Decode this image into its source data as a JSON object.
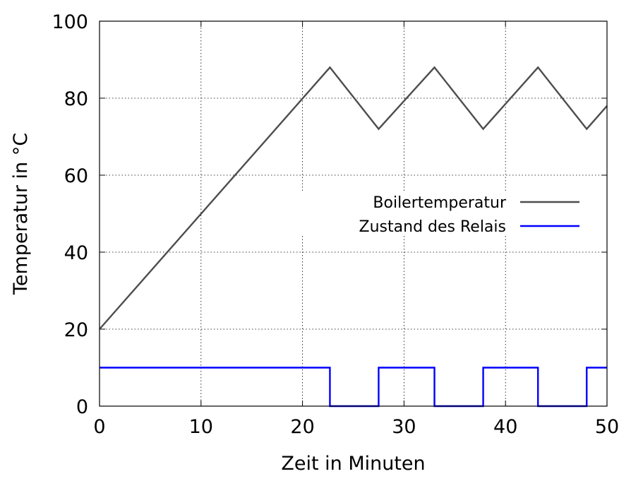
{
  "chart_data": {
    "type": "line",
    "xlabel": "Zeit in Minuten",
    "ylabel": "Temperatur in °C",
    "xlim": [
      0,
      50
    ],
    "ylim": [
      0,
      100
    ],
    "x_ticks": [
      0,
      10,
      20,
      30,
      40,
      50
    ],
    "y_ticks": [
      0,
      20,
      40,
      60,
      80,
      100
    ],
    "x_tick_labels": [
      "0",
      "10",
      "20",
      "30",
      "40",
      "50"
    ],
    "y_tick_labels": [
      "0",
      "20",
      "40",
      "60",
      "80",
      "100"
    ],
    "grid": true,
    "legend_position": "center-right",
    "series": [
      {
        "name": "Boilertemperatur",
        "color": "#4d4d4d",
        "step": false,
        "x": [
          0,
          22.7,
          27.5,
          33.0,
          37.8,
          43.2,
          48.0,
          50
        ],
        "y": [
          20,
          88,
          72,
          88,
          72,
          88,
          72,
          78
        ]
      },
      {
        "name": "Zustand des Relais",
        "color": "#0000ff",
        "step": true,
        "x": [
          0,
          22.7,
          22.7,
          27.5,
          27.5,
          33.0,
          33.0,
          37.8,
          37.8,
          43.2,
          43.2,
          48.0,
          48.0,
          50
        ],
        "y": [
          10,
          10,
          0,
          0,
          10,
          10,
          0,
          0,
          10,
          10,
          0,
          0,
          10,
          10
        ]
      }
    ]
  }
}
